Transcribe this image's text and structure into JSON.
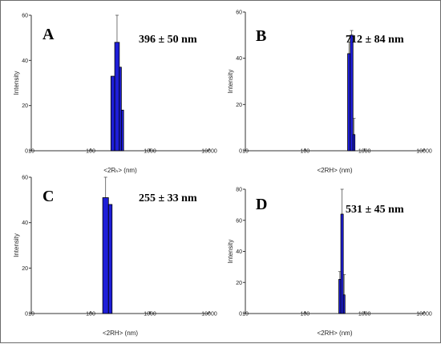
{
  "chart_data": [
    {
      "type": "bar",
      "panel_label": "A",
      "annotation": "396 ± 50 nm",
      "xlabel": "<2Rₕ> (nm)",
      "ylabel": "Intensity",
      "xscale": "log",
      "xlim": [
        10,
        10000
      ],
      "xticks": [
        "10",
        "100",
        "1000",
        "10000"
      ],
      "ylim": [
        0,
        60
      ],
      "yticks": [
        "0",
        "20",
        "40",
        "60"
      ],
      "bars": [
        {
          "x0": 220,
          "x1": 255,
          "y": 33,
          "err": 0
        },
        {
          "x0": 255,
          "x1": 305,
          "y": 48,
          "err": 12
        },
        {
          "x0": 305,
          "x1": 330,
          "y": 37,
          "err": 0
        },
        {
          "x0": 330,
          "x1": 360,
          "y": 18,
          "err": 0
        }
      ]
    },
    {
      "type": "bar",
      "panel_label": "B",
      "annotation": "712 ± 84 nm",
      "xlabel": "<2RH> (nm)",
      "ylabel": "Intensity",
      "xscale": "log",
      "xlim": [
        10,
        10000
      ],
      "xticks": [
        "10",
        "100",
        "1000",
        "10000"
      ],
      "ylim": [
        0,
        60
      ],
      "yticks": [
        "0",
        "20",
        "40",
        "60"
      ],
      "bars": [
        {
          "x0": 520,
          "x1": 575,
          "y": 42,
          "err": 5
        },
        {
          "x0": 575,
          "x1": 640,
          "y": 50,
          "err": 2
        },
        {
          "x0": 640,
          "x1": 690,
          "y": 7,
          "err": 7
        }
      ]
    },
    {
      "type": "bar",
      "panel_label": "C",
      "annotation": "255 ± 33 nm",
      "xlabel": "<2RH> (nm)",
      "ylabel": "Intensity",
      "xscale": "log",
      "xlim": [
        10,
        10000
      ],
      "xticks": [
        "10",
        "100",
        "1000",
        "10000"
      ],
      "ylim": [
        0,
        60
      ],
      "yticks": [
        "0",
        "20",
        "40",
        "60"
      ],
      "bars": [
        {
          "x0": 160,
          "x1": 200,
          "y": 51,
          "err": 9
        },
        {
          "x0": 200,
          "x1": 230,
          "y": 48,
          "err": 0
        }
      ]
    },
    {
      "type": "bar",
      "panel_label": "D",
      "annotation": "531 ± 45 nm",
      "xlabel": "<2RH> (nm)",
      "ylabel": "Intensity",
      "xscale": "log",
      "xlim": [
        10,
        10000
      ],
      "xticks": [
        "10",
        "100",
        "1000",
        "10000"
      ],
      "ylim": [
        0,
        80
      ],
      "yticks": [
        "0",
        "20",
        "40",
        "60",
        "80"
      ],
      "bars": [
        {
          "x0": 370,
          "x1": 400,
          "y": 22,
          "err": 5
        },
        {
          "x0": 400,
          "x1": 440,
          "y": 64,
          "err": 16
        },
        {
          "x0": 440,
          "x1": 470,
          "y": 12,
          "err": 13
        }
      ]
    }
  ],
  "colors": {
    "bar_fill": "#1e1ed8",
    "bar_stroke": "#000000",
    "axis": "#333333",
    "error_bar": "#555555"
  }
}
